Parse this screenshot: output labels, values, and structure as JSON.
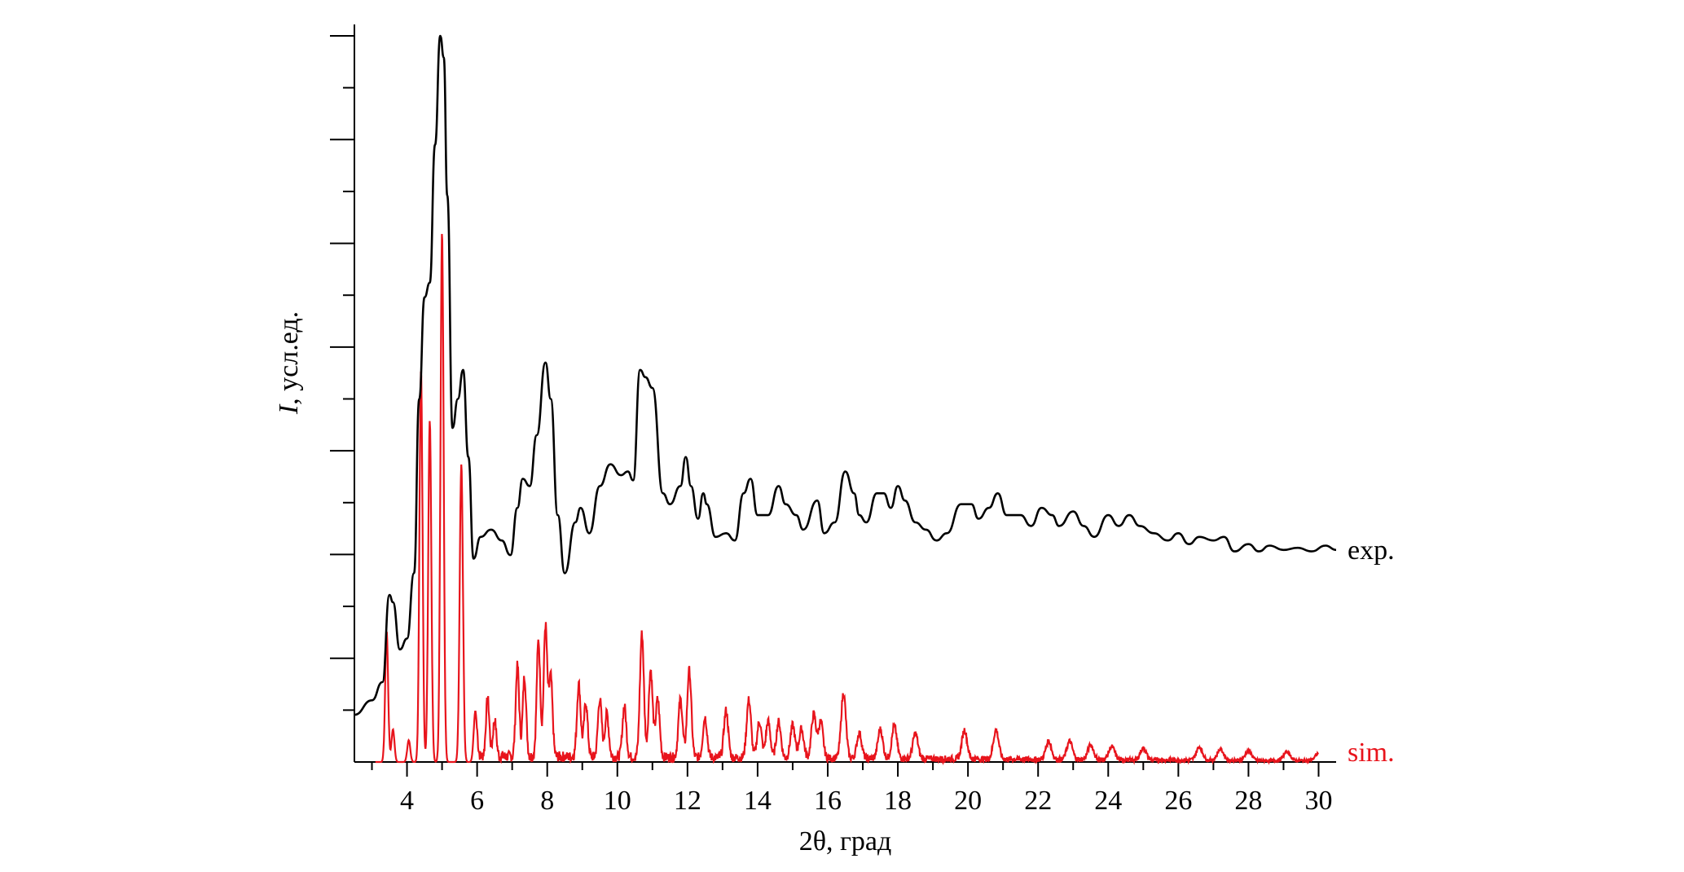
{
  "chart_data": {
    "type": "line",
    "xlabel": "2θ, град",
    "ylabel_italic": "I",
    "ylabel_rest": ", усл.ед.",
    "xlim": [
      2.5,
      30.5
    ],
    "ylim": [
      0,
      100
    ],
    "x_ticks": [
      4,
      6,
      8,
      10,
      12,
      14,
      16,
      18,
      20,
      22,
      24,
      26,
      28,
      30
    ],
    "y_ticks_count": 6,
    "grid": false,
    "series": [
      {
        "name": "exp.",
        "color": "#000000",
        "points": [
          [
            2.5,
            6.5
          ],
          [
            3.0,
            8.5
          ],
          [
            3.3,
            11
          ],
          [
            3.5,
            23
          ],
          [
            3.6,
            22
          ],
          [
            3.8,
            15.5
          ],
          [
            4.0,
            17
          ],
          [
            4.2,
            26
          ],
          [
            4.35,
            50
          ],
          [
            4.5,
            64
          ],
          [
            4.65,
            66
          ],
          [
            4.8,
            85
          ],
          [
            4.95,
            100
          ],
          [
            5.05,
            97
          ],
          [
            5.15,
            78
          ],
          [
            5.3,
            46
          ],
          [
            5.45,
            50
          ],
          [
            5.6,
            54
          ],
          [
            5.75,
            42
          ],
          [
            5.9,
            28
          ],
          [
            6.1,
            31
          ],
          [
            6.4,
            32
          ],
          [
            6.7,
            30.5
          ],
          [
            6.95,
            28.5
          ],
          [
            7.15,
            35
          ],
          [
            7.3,
            39
          ],
          [
            7.5,
            38
          ],
          [
            7.7,
            45
          ],
          [
            7.95,
            55
          ],
          [
            8.1,
            50
          ],
          [
            8.3,
            34
          ],
          [
            8.5,
            26
          ],
          [
            8.8,
            33
          ],
          [
            8.95,
            35
          ],
          [
            9.2,
            31.5
          ],
          [
            9.5,
            38
          ],
          [
            9.8,
            41
          ],
          [
            10.1,
            39.5
          ],
          [
            10.3,
            40
          ],
          [
            10.45,
            38.8
          ],
          [
            10.65,
            54
          ],
          [
            10.8,
            53
          ],
          [
            11.0,
            51.5
          ],
          [
            11.3,
            37
          ],
          [
            11.5,
            35.5
          ],
          [
            11.8,
            38
          ],
          [
            11.95,
            42
          ],
          [
            12.1,
            38
          ],
          [
            12.3,
            33.5
          ],
          [
            12.45,
            37
          ],
          [
            12.55,
            35.5
          ],
          [
            12.8,
            31
          ],
          [
            13.1,
            31.5
          ],
          [
            13.35,
            30.5
          ],
          [
            13.6,
            37
          ],
          [
            13.8,
            39
          ],
          [
            14.0,
            34
          ],
          [
            14.3,
            34
          ],
          [
            14.6,
            38
          ],
          [
            14.8,
            35.5
          ],
          [
            15.1,
            34
          ],
          [
            15.3,
            32
          ],
          [
            15.7,
            36
          ],
          [
            15.9,
            31.5
          ],
          [
            16.2,
            33
          ],
          [
            16.5,
            40
          ],
          [
            16.75,
            37
          ],
          [
            16.9,
            34
          ],
          [
            17.1,
            33
          ],
          [
            17.4,
            37
          ],
          [
            17.6,
            37
          ],
          [
            17.8,
            35
          ],
          [
            18.0,
            38
          ],
          [
            18.2,
            36
          ],
          [
            18.5,
            33
          ],
          [
            18.8,
            32
          ],
          [
            19.1,
            30.5
          ],
          [
            19.4,
            31.5
          ],
          [
            19.8,
            35.5
          ],
          [
            20.1,
            35.5
          ],
          [
            20.3,
            33.5
          ],
          [
            20.6,
            35
          ],
          [
            20.85,
            37
          ],
          [
            21.1,
            34
          ],
          [
            21.5,
            34
          ],
          [
            21.8,
            32.5
          ],
          [
            22.1,
            35
          ],
          [
            22.4,
            34
          ],
          [
            22.6,
            32.5
          ],
          [
            23.0,
            34.5
          ],
          [
            23.3,
            32.5
          ],
          [
            23.6,
            31
          ],
          [
            24.0,
            34
          ],
          [
            24.3,
            32.5
          ],
          [
            24.6,
            34
          ],
          [
            24.9,
            32.5
          ],
          [
            25.3,
            31.5
          ],
          [
            25.7,
            30.5
          ],
          [
            26.0,
            31.5
          ],
          [
            26.3,
            30
          ],
          [
            26.6,
            31
          ],
          [
            27.0,
            30.5
          ],
          [
            27.3,
            31
          ],
          [
            27.6,
            29
          ],
          [
            28.0,
            30
          ],
          [
            28.3,
            29
          ],
          [
            28.6,
            29.8
          ],
          [
            29.0,
            29.2
          ],
          [
            29.4,
            29.5
          ],
          [
            29.8,
            29
          ],
          [
            30.2,
            29.8
          ],
          [
            30.5,
            29.2
          ]
        ]
      },
      {
        "name": "sim.",
        "color": "#e8141c",
        "peaks": [
          [
            3.42,
            18
          ],
          [
            3.6,
            4.5
          ],
          [
            4.05,
            3
          ],
          [
            4.4,
            54
          ],
          [
            4.65,
            47
          ],
          [
            5.0,
            73
          ],
          [
            5.55,
            41
          ],
          [
            5.95,
            7
          ],
          [
            6.3,
            8
          ],
          [
            6.5,
            5
          ],
          [
            7.15,
            12.5
          ],
          [
            7.35,
            11
          ],
          [
            7.75,
            16
          ],
          [
            7.95,
            18
          ],
          [
            8.1,
            11
          ],
          [
            8.9,
            10
          ],
          [
            9.1,
            7.5
          ],
          [
            9.5,
            8
          ],
          [
            9.7,
            6
          ],
          [
            10.2,
            7
          ],
          [
            10.7,
            17
          ],
          [
            10.95,
            12
          ],
          [
            11.15,
            8
          ],
          [
            11.8,
            8
          ],
          [
            12.05,
            12
          ],
          [
            12.5,
            5.5
          ],
          [
            13.1,
            6.5
          ],
          [
            13.75,
            8
          ],
          [
            14.05,
            5
          ],
          [
            14.3,
            5
          ],
          [
            14.6,
            5
          ],
          [
            15.0,
            4.5
          ],
          [
            15.25,
            4
          ],
          [
            15.6,
            6
          ],
          [
            15.8,
            5
          ],
          [
            16.45,
            9
          ],
          [
            16.9,
            3.5
          ],
          [
            17.5,
            4
          ],
          [
            17.9,
            4.5
          ],
          [
            18.5,
            3.5
          ],
          [
            19.9,
            4
          ],
          [
            20.8,
            4
          ],
          [
            22.3,
            2.5
          ],
          [
            22.9,
            2.5
          ],
          [
            23.5,
            2
          ],
          [
            24.1,
            1.8
          ],
          [
            25.0,
            1.6
          ],
          [
            26.6,
            1.8
          ],
          [
            27.2,
            1.5
          ],
          [
            28.0,
            1.3
          ],
          [
            29.1,
            1.2
          ],
          [
            30.0,
            1
          ]
        ]
      }
    ]
  }
}
